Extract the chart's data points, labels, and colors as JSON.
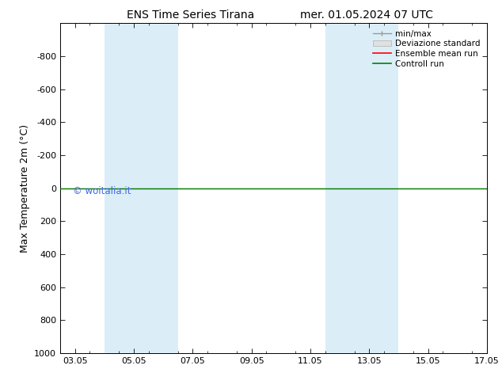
{
  "title_left": "ENS Time Series Tirana",
  "title_right": "mer. 01.05.2024 07 UTC",
  "ylabel": "Max Temperature 2m (°C)",
  "ylim_top": -1000,
  "ylim_bottom": 1000,
  "yticks": [
    -800,
    -600,
    -400,
    -200,
    0,
    200,
    400,
    600,
    800,
    1000
  ],
  "xlim_start": 0.5,
  "xlim_end": 14.5,
  "xtick_labels": [
    "03.05",
    "05.05",
    "07.05",
    "09.05",
    "11.05",
    "13.05",
    "15.05",
    "17.05"
  ],
  "xtick_positions": [
    1,
    3,
    5,
    7,
    9,
    11,
    13,
    15
  ],
  "blue_bands": [
    [
      2.0,
      3.2
    ],
    [
      3.2,
      4.5
    ],
    [
      9.5,
      10.8
    ],
    [
      10.8,
      12.0
    ]
  ],
  "blue_band_color": "#dbeef8",
  "control_run_color": "#008000",
  "ensemble_mean_color": "#ff0000",
  "watermark": "© woitalia.it",
  "watermark_color": "#4169e1",
  "background_color": "#ffffff",
  "legend_entries": [
    "min/max",
    "Deviazione standard",
    "Ensemble mean run",
    "Controll run"
  ],
  "legend_colors": [
    "#999999",
    "#cccccc",
    "#ff0000",
    "#008000"
  ],
  "title_fontsize": 10,
  "axis_fontsize": 8,
  "ylabel_fontsize": 9
}
